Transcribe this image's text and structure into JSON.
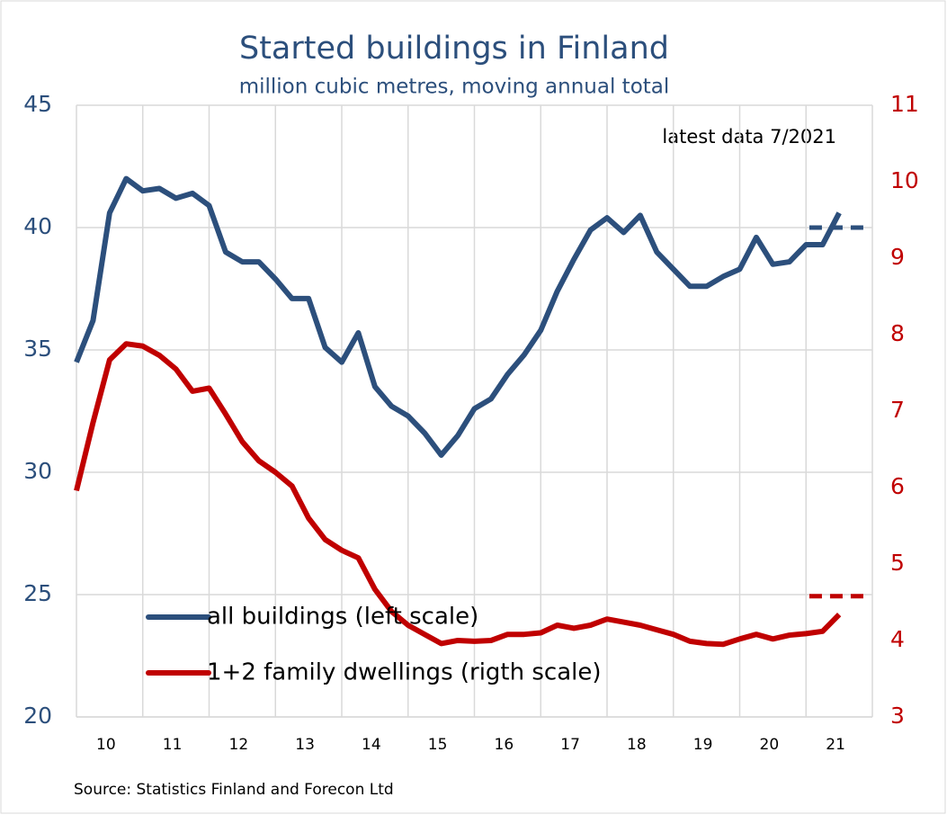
{
  "chart_data": {
    "type": "line",
    "title": "Started buildings in Finland",
    "subtitle": "million cubic metres, moving annual total",
    "annotation": "latest data 7/2021",
    "source": "Source: Statistics Finland and Forecon Ltd",
    "x": [
      2010,
      2010.25,
      2010.5,
      2010.75,
      2011,
      2011.25,
      2011.5,
      2011.75,
      2012,
      2012.25,
      2012.5,
      2012.75,
      2013,
      2013.25,
      2013.5,
      2013.75,
      2014,
      2014.25,
      2014.5,
      2014.75,
      2015,
      2015.25,
      2015.5,
      2015.75,
      2016,
      2016.25,
      2016.5,
      2016.75,
      2017,
      2017.25,
      2017.5,
      2017.75,
      2018,
      2018.25,
      2018.5,
      2018.75,
      2019,
      2019.25,
      2019.5,
      2019.75,
      2020,
      2020.25,
      2020.5,
      2020.75,
      2021,
      2021.25,
      2021.5
    ],
    "series": [
      {
        "name": "all buildings (left scale)",
        "color": "#2c4f7c",
        "axis": "y",
        "values": [
          34.5,
          36.2,
          40.6,
          42.0,
          41.5,
          41.6,
          41.2,
          41.4,
          40.9,
          39.0,
          38.6,
          38.6,
          37.9,
          37.1,
          37.1,
          35.1,
          34.5,
          35.7,
          33.5,
          32.7,
          32.3,
          31.6,
          30.7,
          31.5,
          32.6,
          33.0,
          34.0,
          34.8,
          35.8,
          37.4,
          38.7,
          39.9,
          40.4,
          39.8,
          40.5,
          39.0,
          38.3,
          37.6,
          37.6,
          38.0,
          38.3,
          39.6,
          38.5,
          38.6,
          39.3,
          39.3,
          40.6
        ]
      },
      {
        "name": "1+2 family dwellings (rigth scale)",
        "color": "#c00000",
        "axis": "y2",
        "values": [
          5.96,
          6.85,
          7.67,
          7.88,
          7.85,
          7.73,
          7.55,
          7.26,
          7.3,
          6.96,
          6.6,
          6.35,
          6.2,
          6.02,
          5.6,
          5.32,
          5.18,
          5.08,
          4.67,
          4.38,
          4.2,
          4.08,
          3.96,
          4.0,
          3.99,
          4.0,
          4.08,
          4.08,
          4.1,
          4.2,
          4.16,
          4.2,
          4.28,
          4.24,
          4.2,
          4.14,
          4.08,
          3.99,
          3.96,
          3.95,
          4.02,
          4.08,
          4.02,
          4.07,
          4.09,
          4.12,
          4.34
        ]
      }
    ],
    "forecast_lines": [
      {
        "axis": "y",
        "color": "#2c4f7c",
        "x": [
          2021.05,
          2021.95
        ],
        "values": [
          40,
          40
        ]
      },
      {
        "axis": "y2",
        "color": "#c00000",
        "x": [
          2021.05,
          2021.95
        ],
        "values": [
          4.58,
          4.58
        ]
      }
    ],
    "xlim": [
      2010,
      2022
    ],
    "xticks": [
      {
        "value": 2010.5,
        "label": "10"
      },
      {
        "value": 2011.5,
        "label": "11"
      },
      {
        "value": 2012.5,
        "label": "12"
      },
      {
        "value": 2013.5,
        "label": "13"
      },
      {
        "value": 2014.5,
        "label": "14"
      },
      {
        "value": 2015.5,
        "label": "15"
      },
      {
        "value": 2016.5,
        "label": "16"
      },
      {
        "value": 2017.5,
        "label": "17"
      },
      {
        "value": 2018.5,
        "label": "18"
      },
      {
        "value": 2019.5,
        "label": "19"
      },
      {
        "value": 2020.5,
        "label": "20"
      },
      {
        "value": 2021.5,
        "label": "21"
      }
    ],
    "ylim": [
      20,
      45
    ],
    "yticks": [
      20,
      25,
      30,
      35,
      40,
      45
    ],
    "y2lim": [
      3,
      11
    ],
    "y2ticks": [
      3,
      4,
      5,
      6,
      7,
      8,
      9,
      10,
      11
    ],
    "grid": true,
    "legend": "lower left"
  }
}
